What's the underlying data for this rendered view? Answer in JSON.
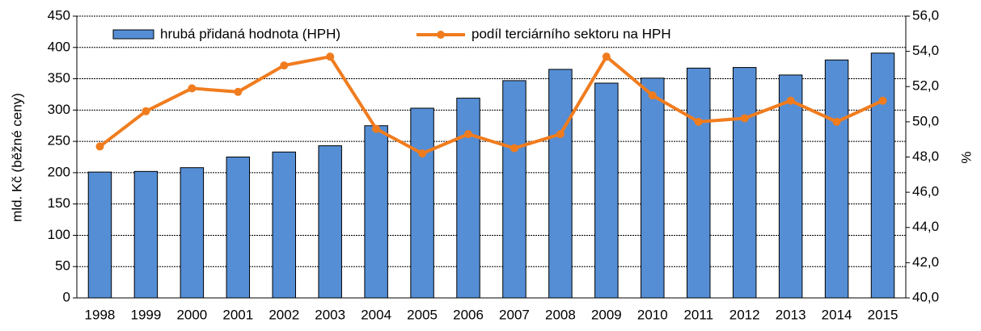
{
  "chart_data": {
    "type": "bar_line",
    "y_label": "mld. Kč (běžné ceny)",
    "y2_label": "%",
    "categories": [
      "1998",
      "1999",
      "2000",
      "2001",
      "2002",
      "2003",
      "2004",
      "2005",
      "2006",
      "2007",
      "2008",
      "2009",
      "2010",
      "2011",
      "2012",
      "2013",
      "2014",
      "2015"
    ],
    "series": [
      {
        "name": "hrubá přidaná hodnota (HPH)",
        "color": "#558ed5",
        "type": "bar",
        "values": [
          201,
          202,
          208,
          225,
          233,
          243,
          275,
          303,
          319,
          347,
          365,
          343,
          351,
          367,
          368,
          356,
          380,
          391
        ]
      },
      {
        "name": "podíl terciárního sektoru na HPH",
        "color": "#f07c1e",
        "type": "line",
        "axis": "y2",
        "values": [
          48.6,
          50.6,
          51.9,
          51.7,
          53.2,
          53.7,
          49.6,
          48.2,
          49.3,
          48.5,
          49.3,
          53.7,
          51.5,
          50.0,
          50.2,
          51.2,
          50.0,
          51.2
        ]
      }
    ],
    "ylim": [
      0,
      450
    ],
    "yticks": [
      0,
      50,
      100,
      150,
      200,
      250,
      300,
      350,
      400,
      450
    ],
    "y2lim": [
      40,
      56
    ],
    "y2ticks": [
      {
        "value": 40,
        "label": "40,0"
      },
      {
        "value": 42,
        "label": "42,0"
      },
      {
        "value": 44,
        "label": "44,0"
      },
      {
        "value": 46,
        "label": "46,0"
      },
      {
        "value": 48,
        "label": "48,0"
      },
      {
        "value": 50,
        "label": "50,0"
      },
      {
        "value": 52,
        "label": "52,0"
      },
      {
        "value": 54,
        "label": "54,0"
      },
      {
        "value": 56,
        "label": "56,0"
      }
    ],
    "grid": true
  }
}
